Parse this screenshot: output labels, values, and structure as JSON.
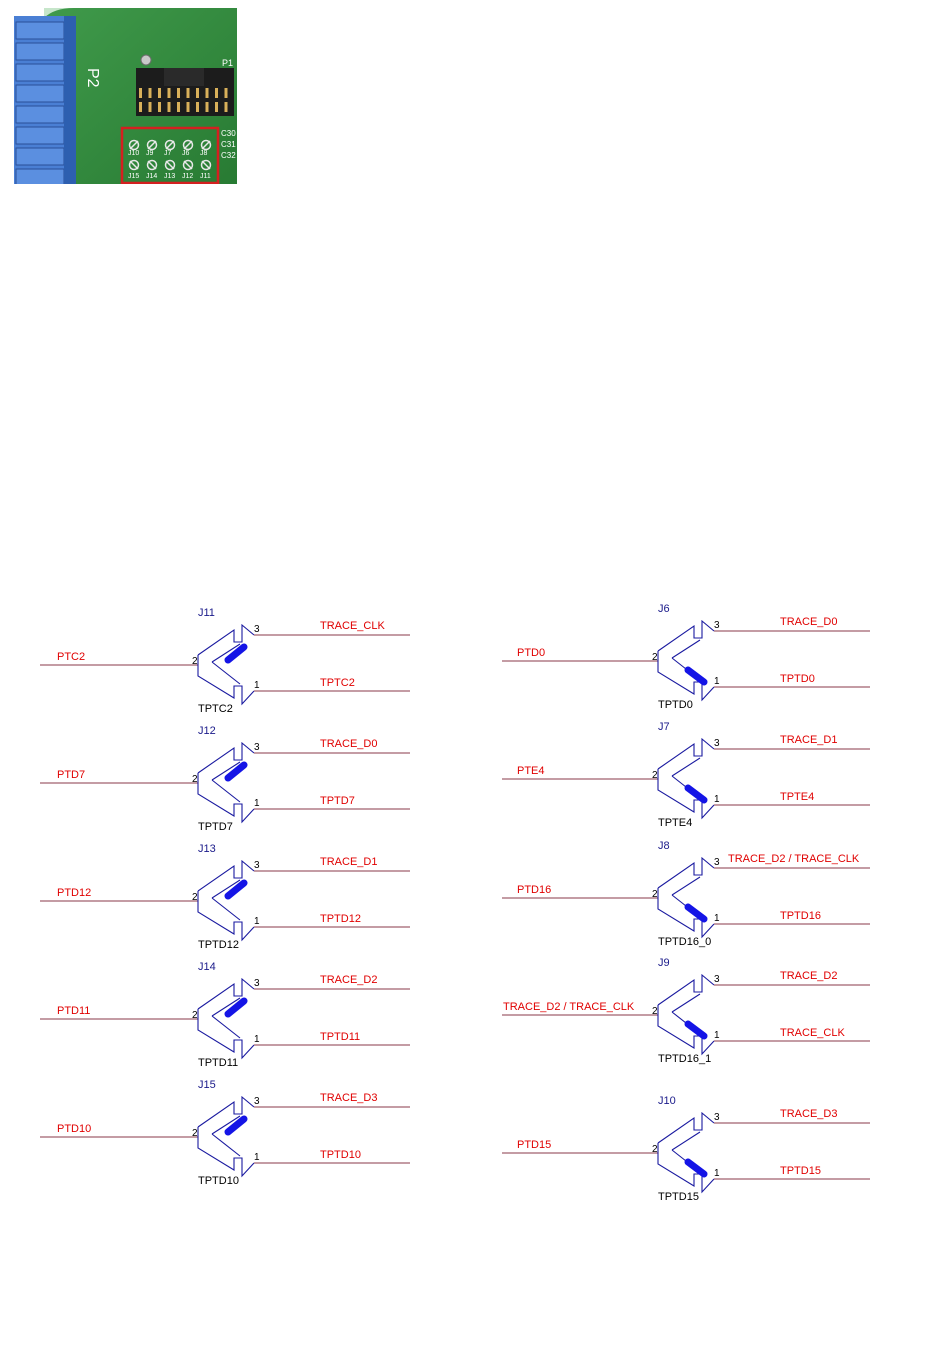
{
  "photo": {
    "header_p2": "P2",
    "header_p1": "P1",
    "cap_labels": [
      "C30",
      "C31",
      "C32"
    ],
    "jumper_row_top": [
      "J10",
      "J9",
      "J7",
      "J6",
      "J8"
    ],
    "jumper_row_bottom": [
      "J15",
      "J14",
      "J13",
      "J12",
      "J11"
    ],
    "colors": {
      "pcb": "#2f8a3a",
      "highlight": "#d42020",
      "connector": "#4a7fd4"
    }
  },
  "schematic": {
    "colors": {
      "net_label": "#e00000",
      "wire": "#8a3a4a",
      "symbol": "#1a1aa0",
      "shunt": "#1414e6",
      "ref": "#1a1a8a",
      "value": "#000000"
    },
    "pin_numbers": {
      "common": "2",
      "upper": "3",
      "lower": "1"
    },
    "jumpers": [
      {
        "ref": "J11",
        "value": "TPTC2",
        "left_net": "PTC2",
        "upper_net": "TRACE_CLK",
        "lower_net": "TPTC2",
        "shunt": "2-3"
      },
      {
        "ref": "J12",
        "value": "TPTD7",
        "left_net": "PTD7",
        "upper_net": "TRACE_D0",
        "lower_net": "TPTD7",
        "shunt": "2-3"
      },
      {
        "ref": "J13",
        "value": "TPTD12",
        "left_net": "PTD12",
        "upper_net": "TRACE_D1",
        "lower_net": "TPTD12",
        "shunt": "2-3"
      },
      {
        "ref": "J14",
        "value": "TPTD11",
        "left_net": "PTD11",
        "upper_net": "TRACE_D2",
        "lower_net": "TPTD11",
        "shunt": "2-3"
      },
      {
        "ref": "J15",
        "value": "TPTD10",
        "left_net": "PTD10",
        "upper_net": "TRACE_D3",
        "lower_net": "TPTD10",
        "shunt": "2-3"
      },
      {
        "ref": "J6",
        "value": "TPTD0",
        "left_net": "PTD0",
        "upper_net": "TRACE_D0",
        "lower_net": "TPTD0",
        "shunt": "1-2"
      },
      {
        "ref": "J7",
        "value": "TPTE4",
        "left_net": "PTE4",
        "upper_net": "TRACE_D1",
        "lower_net": "TPTE4",
        "shunt": "1-2"
      },
      {
        "ref": "J8",
        "value": "TPTD16_0",
        "left_net": "PTD16",
        "upper_net": "TRACE_D2 / TRACE_CLK",
        "lower_net": "TPTD16",
        "shunt": "1-2"
      },
      {
        "ref": "J9",
        "value": "TPTD16_1",
        "left_net": "TRACE_D2 / TRACE_CLK",
        "upper_net": "TRACE_D2",
        "lower_net": "TRACE_CLK",
        "shunt": "1-2"
      },
      {
        "ref": "J10",
        "value": "TPTD15",
        "left_net": "PTD15",
        "upper_net": "TRACE_D3",
        "lower_net": "TPTD15",
        "shunt": "1-2"
      }
    ]
  }
}
